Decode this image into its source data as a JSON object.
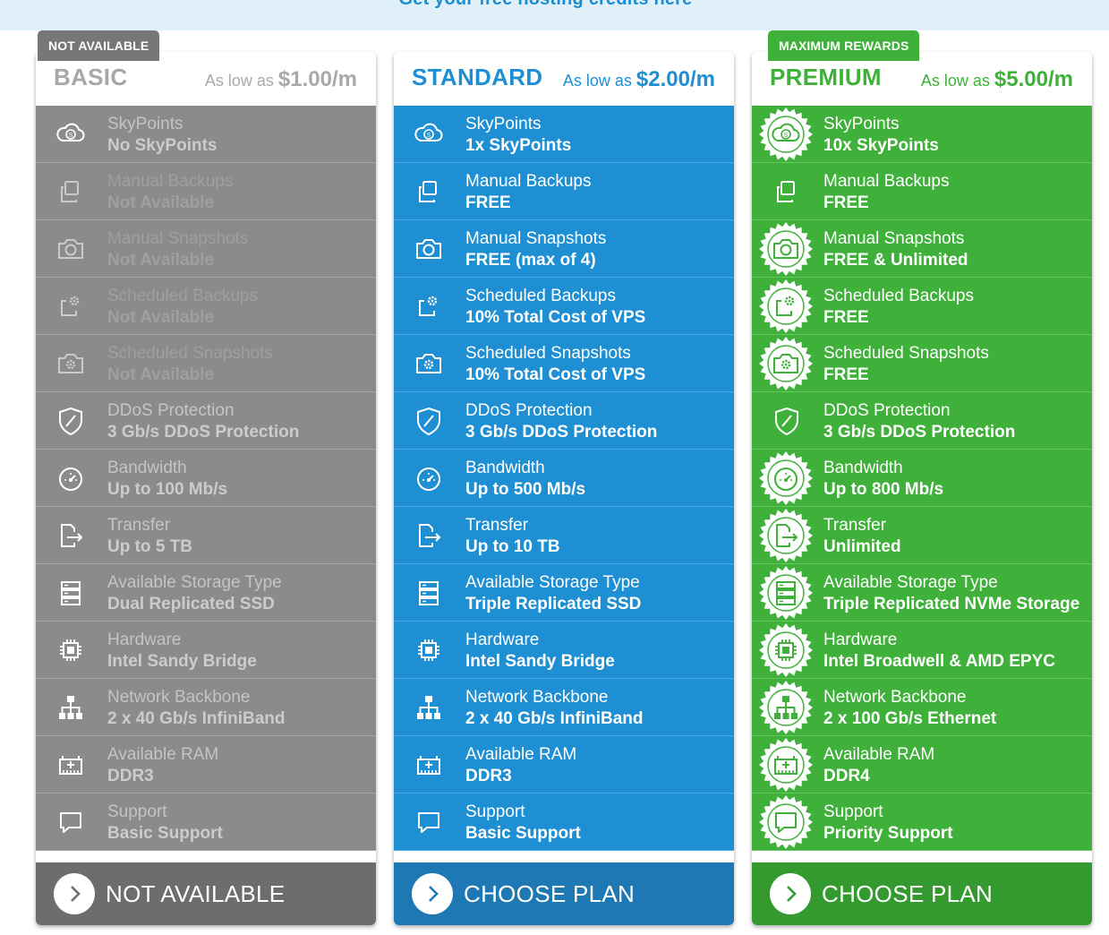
{
  "banner": {
    "text": "Get your free hosting credits here"
  },
  "colors": {
    "basic": "#8b8b8b",
    "standard": "#1f8fd3",
    "premium": "#3fb13a",
    "ribbon_basic": "#777777",
    "ribbon_premium": "#3fb13a"
  },
  "feature_icons": [
    "cloud-coin-icon",
    "copy-icon",
    "camera-icon",
    "scheduled-backup-icon",
    "scheduled-snapshot-icon",
    "shield-icon",
    "speedometer-icon",
    "file-transfer-icon",
    "storage-icon",
    "chip-icon",
    "network-icon",
    "ram-icon",
    "chat-icon"
  ],
  "plans": [
    {
      "id": "basic",
      "ribbon": "NOT AVAILABLE",
      "name": "BASIC",
      "price_prefix": "As low as",
      "price": "$1.00/m",
      "cta": "NOT AVAILABLE",
      "features": [
        {
          "label": "SkyPoints",
          "value": "No SkyPoints"
        },
        {
          "label": "Manual Backups",
          "value": "Not Available"
        },
        {
          "label": "Manual Snapshots",
          "value": "Not Available"
        },
        {
          "label": "Scheduled Backups",
          "value": "Not Available"
        },
        {
          "label": "Scheduled Snapshots",
          "value": "Not Available"
        },
        {
          "label": "DDoS Protection",
          "value": "3 Gb/s DDoS Protection"
        },
        {
          "label": "Bandwidth",
          "value": "Up to 100 Mb/s"
        },
        {
          "label": "Transfer",
          "value": "Up to 5 TB"
        },
        {
          "label": "Available Storage Type",
          "value": "Dual Replicated SSD"
        },
        {
          "label": "Hardware",
          "value": "Intel Sandy Bridge"
        },
        {
          "label": "Network Backbone",
          "value": "2 x 40 Gb/s InfiniBand"
        },
        {
          "label": "Available RAM",
          "value": "DDR3"
        },
        {
          "label": "Support",
          "value": "Basic Support"
        }
      ]
    },
    {
      "id": "standard",
      "ribbon": "",
      "name": "STANDARD",
      "price_prefix": "As low as",
      "price": "$2.00/m",
      "cta": "CHOOSE PLAN",
      "features": [
        {
          "label": "SkyPoints",
          "value": "1x SkyPoints"
        },
        {
          "label": "Manual Backups",
          "value": "FREE"
        },
        {
          "label": "Manual Snapshots",
          "value": "FREE (max of 4)"
        },
        {
          "label": "Scheduled Backups",
          "value": "10% Total Cost of VPS"
        },
        {
          "label": "Scheduled Snapshots",
          "value": "10% Total Cost of VPS"
        },
        {
          "label": "DDoS Protection",
          "value": "3 Gb/s DDoS Protection"
        },
        {
          "label": "Bandwidth",
          "value": "Up to 500 Mb/s"
        },
        {
          "label": "Transfer",
          "value": "Up to 10 TB"
        },
        {
          "label": "Available Storage Type",
          "value": "Triple Replicated SSD"
        },
        {
          "label": "Hardware",
          "value": "Intel Sandy Bridge"
        },
        {
          "label": "Network Backbone",
          "value": "2 x 40 Gb/s InfiniBand"
        },
        {
          "label": "Available RAM",
          "value": "DDR3"
        },
        {
          "label": "Support",
          "value": "Basic Support"
        }
      ]
    },
    {
      "id": "premium",
      "ribbon": "MAXIMUM REWARDS",
      "name": "PREMIUM",
      "price_prefix": "As low as",
      "price": "$5.00/m",
      "cta": "CHOOSE PLAN",
      "features": [
        {
          "label": "SkyPoints",
          "value": "10x SkyPoints"
        },
        {
          "label": "Manual Backups",
          "value": "FREE"
        },
        {
          "label": "Manual Snapshots",
          "value": "FREE & Unlimited"
        },
        {
          "label": "Scheduled Backups",
          "value": "FREE"
        },
        {
          "label": "Scheduled Snapshots",
          "value": "FREE"
        },
        {
          "label": "DDoS Protection",
          "value": "3 Gb/s DDoS Protection"
        },
        {
          "label": "Bandwidth",
          "value": "Up to 800 Mb/s"
        },
        {
          "label": "Transfer",
          "value": "Unlimited"
        },
        {
          "label": "Available Storage Type",
          "value": "Triple Replicated NVMe Storage"
        },
        {
          "label": "Hardware",
          "value": "Intel Broadwell & AMD EPYC"
        },
        {
          "label": "Network Backbone",
          "value": "2 x 100 Gb/s Ethernet"
        },
        {
          "label": "Available RAM",
          "value": "DDR4"
        },
        {
          "label": "Support",
          "value": "Priority Support"
        }
      ]
    }
  ]
}
